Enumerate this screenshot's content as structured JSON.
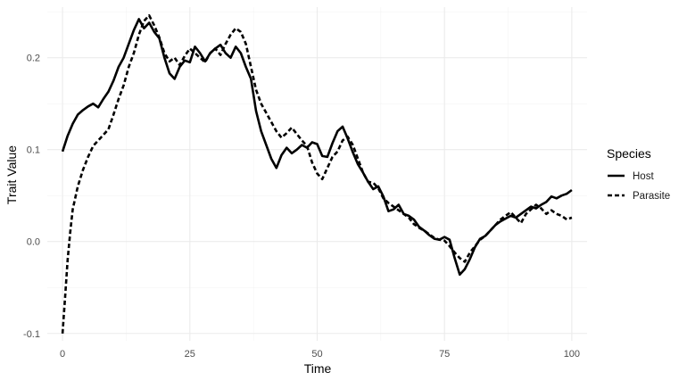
{
  "chart_data": {
    "type": "line",
    "title": "",
    "xlabel": "Time",
    "ylabel": "Trait Value",
    "xlim": [
      -3,
      103
    ],
    "ylim": [
      -0.108,
      0.255
    ],
    "x_ticks": [
      0,
      25,
      50,
      75,
      100
    ],
    "x_tick_labels": [
      "0",
      "25",
      "50",
      "75",
      "100"
    ],
    "y_ticks": [
      -0.1,
      0.0,
      0.1,
      0.2
    ],
    "y_tick_labels": [
      "-0.1",
      "0.0",
      "0.1",
      "0.2"
    ],
    "grid": true,
    "legend": {
      "title": "Species",
      "position": "right"
    },
    "line_color": "#000000",
    "series": [
      {
        "name": "Host",
        "linetype": "solid",
        "x": [
          0,
          1,
          2,
          3,
          4,
          5,
          6,
          7,
          8,
          9,
          10,
          11,
          12,
          13,
          14,
          15,
          16,
          17,
          18,
          19,
          20,
          21,
          22,
          23,
          24,
          25,
          26,
          27,
          28,
          29,
          30,
          31,
          32,
          33,
          34,
          35,
          36,
          37,
          38,
          39,
          40,
          41,
          42,
          43,
          44,
          45,
          46,
          47,
          48,
          49,
          50,
          51,
          52,
          53,
          54,
          55,
          56,
          57,
          58,
          59,
          60,
          61,
          62,
          63,
          64,
          65,
          66,
          67,
          68,
          69,
          70,
          71,
          72,
          73,
          74,
          75,
          76,
          77,
          78,
          79,
          80,
          81,
          82,
          83,
          84,
          85,
          86,
          87,
          88,
          89,
          90,
          91,
          92,
          93,
          94,
          95,
          96,
          97,
          98,
          99,
          100
        ],
        "y": [
          0.098,
          0.115,
          0.128,
          0.138,
          0.143,
          0.147,
          0.15,
          0.146,
          0.155,
          0.163,
          0.175,
          0.19,
          0.2,
          0.215,
          0.23,
          0.242,
          0.232,
          0.238,
          0.228,
          0.221,
          0.2,
          0.183,
          0.177,
          0.19,
          0.197,
          0.195,
          0.212,
          0.205,
          0.196,
          0.205,
          0.21,
          0.214,
          0.205,
          0.2,
          0.212,
          0.205,
          0.19,
          0.177,
          0.142,
          0.12,
          0.105,
          0.09,
          0.08,
          0.094,
          0.102,
          0.096,
          0.1,
          0.105,
          0.102,
          0.108,
          0.106,
          0.093,
          0.092,
          0.107,
          0.12,
          0.125,
          0.112,
          0.097,
          0.084,
          0.075,
          0.065,
          0.057,
          0.06,
          0.049,
          0.033,
          0.035,
          0.04,
          0.03,
          0.028,
          0.024,
          0.016,
          0.012,
          0.007,
          0.003,
          0.002,
          0.005,
          0.002,
          -0.018,
          -0.036,
          -0.03,
          -0.019,
          -0.006,
          0.003,
          0.006,
          0.012,
          0.018,
          0.022,
          0.025,
          0.028,
          0.026,
          0.03,
          0.034,
          0.038,
          0.036,
          0.04,
          0.043,
          0.049,
          0.047,
          0.05,
          0.052,
          0.056
        ]
      },
      {
        "name": "Parasite",
        "linetype": "dashed",
        "x": [
          0,
          0.5,
          1,
          1.5,
          2,
          3,
          4,
          5,
          6,
          7,
          8,
          9,
          10,
          11,
          12,
          13,
          14,
          15,
          16,
          17,
          18,
          19,
          20,
          21,
          22,
          23,
          24,
          25,
          26,
          27,
          28,
          29,
          30,
          31,
          32,
          33,
          34,
          35,
          36,
          37,
          38,
          39,
          40,
          41,
          42,
          43,
          44,
          45,
          46,
          47,
          48,
          49,
          50,
          51,
          52,
          53,
          54,
          55,
          56,
          57,
          58,
          59,
          60,
          61,
          62,
          63,
          64,
          65,
          66,
          67,
          68,
          69,
          70,
          71,
          72,
          73,
          74,
          75,
          76,
          77,
          78,
          79,
          80,
          81,
          82,
          83,
          84,
          85,
          86,
          87,
          88,
          89,
          90,
          91,
          92,
          93,
          94,
          95,
          96,
          97,
          98,
          99,
          100
        ],
        "y": [
          -0.1,
          -0.06,
          -0.02,
          0.01,
          0.035,
          0.06,
          0.078,
          0.092,
          0.104,
          0.11,
          0.116,
          0.122,
          0.138,
          0.155,
          0.17,
          0.19,
          0.205,
          0.225,
          0.24,
          0.246,
          0.235,
          0.222,
          0.205,
          0.196,
          0.2,
          0.192,
          0.202,
          0.21,
          0.205,
          0.2,
          0.195,
          0.205,
          0.21,
          0.203,
          0.215,
          0.225,
          0.232,
          0.228,
          0.215,
          0.19,
          0.165,
          0.15,
          0.14,
          0.13,
          0.12,
          0.113,
          0.118,
          0.124,
          0.117,
          0.11,
          0.104,
          0.086,
          0.074,
          0.068,
          0.08,
          0.092,
          0.098,
          0.11,
          0.114,
          0.105,
          0.09,
          0.075,
          0.065,
          0.064,
          0.058,
          0.047,
          0.042,
          0.038,
          0.034,
          0.03,
          0.026,
          0.019,
          0.015,
          0.012,
          0.008,
          0.004,
          0.002,
          0.001,
          -0.005,
          -0.012,
          -0.018,
          -0.022,
          -0.012,
          -0.005,
          0.002,
          0.006,
          0.012,
          0.018,
          0.024,
          0.028,
          0.032,
          0.026,
          0.02,
          0.03,
          0.035,
          0.04,
          0.036,
          0.03,
          0.034,
          0.03,
          0.028,
          0.024,
          0.026
        ]
      }
    ]
  }
}
